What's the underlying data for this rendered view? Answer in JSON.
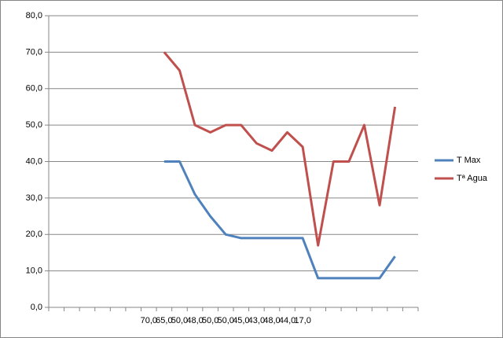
{
  "chart_data": {
    "type": "line",
    "categories": [
      null,
      null,
      null,
      null,
      null,
      null,
      "70,0",
      "65,0",
      "50,0",
      "48,0",
      "50,0",
      "50,0",
      "45,0",
      "43,0",
      "48,0",
      "44,0",
      "17,0",
      null,
      null,
      null,
      null,
      null,
      null,
      null
    ],
    "series": [
      {
        "name": "T Max",
        "color": "#4f81bd",
        "values": [
          null,
          null,
          null,
          null,
          null,
          null,
          null,
          40,
          40,
          31,
          25,
          20,
          19,
          19,
          19,
          19,
          19,
          8,
          8,
          8,
          8,
          8,
          14,
          null
        ]
      },
      {
        "name": "Tª Agua",
        "color": "#c0504d",
        "values": [
          null,
          null,
          null,
          null,
          null,
          null,
          null,
          70,
          65,
          50,
          48,
          50,
          50,
          45,
          43,
          48,
          44,
          17,
          40,
          40,
          50,
          28,
          55,
          null
        ]
      }
    ],
    "ylim": [
      0,
      80
    ],
    "yticks": [
      {
        "value": 0,
        "label": "0,0"
      },
      {
        "value": 10,
        "label": "10,0"
      },
      {
        "value": 20,
        "label": "20,0"
      },
      {
        "value": 30,
        "label": "30,0"
      },
      {
        "value": 40,
        "label": "40,0"
      },
      {
        "value": 50,
        "label": "50,0"
      },
      {
        "value": 60,
        "label": "60,0"
      },
      {
        "value": 70,
        "label": "70,0"
      },
      {
        "value": 80,
        "label": "80,0"
      }
    ],
    "grid": true,
    "legend": "right"
  }
}
